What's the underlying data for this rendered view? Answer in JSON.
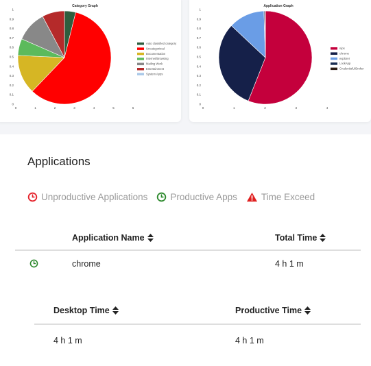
{
  "category_chart": {
    "title": "Category Graph",
    "x_ticks": [
      "0",
      "1",
      "2",
      "3",
      "4",
      "5",
      "6"
    ],
    "y_ticks": [
      "0",
      "0.1",
      "0.2",
      "0.3",
      "0.4",
      "0.5",
      "0.6",
      "0.7",
      "0.8",
      "0.9",
      "1"
    ],
    "legend": [
      {
        "label": "Auto classified category",
        "color": "#2e5e3e"
      },
      {
        "label": "Uncategorized",
        "color": "#ff0000"
      },
      {
        "label": "Documentation",
        "color": "#d6b624"
      },
      {
        "label": "Internet/Browsing",
        "color": "#5cba5c"
      },
      {
        "label": "Mailing Work",
        "color": "#888888"
      },
      {
        "label": "Entertainment",
        "color": "#b52a2a"
      },
      {
        "label": "System Apps",
        "color": "#a9c8e8"
      }
    ]
  },
  "application_chart": {
    "title": "Application Graph",
    "x_ticks": [
      "0",
      "1",
      "2",
      "3",
      "4"
    ],
    "y_ticks": [
      "0",
      "0.1",
      "0.2",
      "0.3",
      "0.4",
      "0.5",
      "0.6",
      "0.7",
      "0.8",
      "0.9",
      "1"
    ],
    "legend": [
      {
        "label": "nips",
        "color": "#c4003c"
      },
      {
        "label": "chrome",
        "color": "#152049"
      },
      {
        "label": "explorer",
        "color": "#6a9de6"
      },
      {
        "label": "LockApp",
        "color": "#1a2e52"
      },
      {
        "label": "CredentialUIBroker",
        "color": "#2b1b12"
      }
    ]
  },
  "chart_data": [
    {
      "type": "pie",
      "title": "Category Graph",
      "categories": [
        "Auto classified category",
        "Uncategorized",
        "Documentation",
        "Internet/Browsing",
        "Mailing Work",
        "Entertainment",
        "System Apps"
      ],
      "values": [
        0.04,
        0.6,
        0.14,
        0.06,
        0.11,
        0.08,
        0.0
      ]
    },
    {
      "type": "pie",
      "title": "Application Graph",
      "categories": [
        "nips",
        "chrome",
        "explorer",
        "LockApp",
        "CredentialUIBroker"
      ],
      "values": [
        0.56,
        0.31,
        0.125,
        0.003,
        0.002
      ]
    }
  ],
  "applications": {
    "title": "Applications",
    "legend": {
      "unproductive": "Unproductive Applications",
      "productive": "Productive Apps",
      "exceed": "Time Exceed"
    },
    "table": {
      "headers": {
        "name": "Application Name",
        "total": "Total Time"
      },
      "rows": [
        {
          "name": "chrome",
          "total": "4 h 1 m",
          "status": "productive"
        }
      ]
    },
    "detail": {
      "headers": {
        "desktop": "Desktop Time",
        "productive": "Productive Time"
      },
      "values": {
        "desktop": "4 h 1 m",
        "productive": "4 h 1 m"
      }
    }
  },
  "colors": {
    "unproductive": "#e5222b",
    "productive": "#2e8a2e",
    "exceed": "#e02020"
  }
}
